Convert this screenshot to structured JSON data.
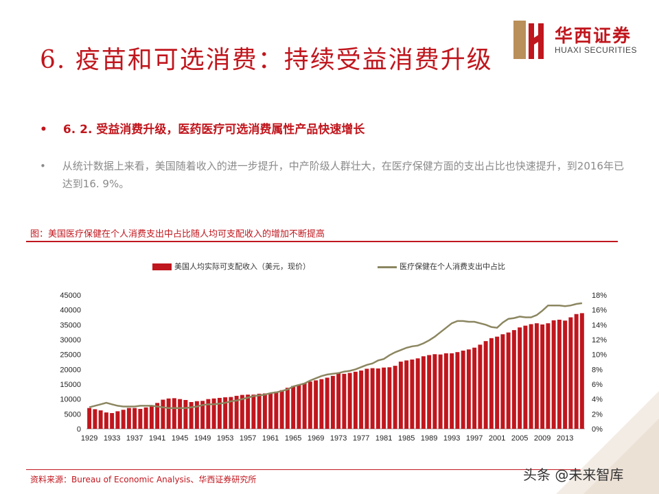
{
  "slide": {
    "title": "6. 疫苗和可选消费：持续受益消费升级",
    "bullet1": "6. 2. 受益消费升级，医药医疗可选消费属性产品快速增长",
    "bullet2": "从统计数据上来看，美国随着收入的进一步提升，中产阶级人群壮大，在医疗保健方面的支出占比也快速提升，到2016年已达到16. 9%。",
    "bullet_symbol": "•"
  },
  "logo": {
    "cn": "华西证券",
    "en": "HUAXI SECURITIES"
  },
  "figure": {
    "caption": "图：美国医疗保健在个人消费支出中占比随人均可支配收入的增加不断提高",
    "source": "资料来源：Bureau of Economic Analysis、华西证券研究所"
  },
  "watermark": "头条 @未来智库",
  "colors": {
    "accent": "#c0161d",
    "line": "#8b8660",
    "muted": "#8a8a8a"
  },
  "chart_data": {
    "type": "bar",
    "legend_placement": "top",
    "x": [
      1929,
      1930,
      1931,
      1932,
      1933,
      1934,
      1935,
      1936,
      1937,
      1938,
      1939,
      1940,
      1941,
      1942,
      1943,
      1944,
      1945,
      1946,
      1947,
      1948,
      1949,
      1950,
      1951,
      1952,
      1953,
      1954,
      1955,
      1956,
      1957,
      1958,
      1959,
      1960,
      1961,
      1962,
      1963,
      1964,
      1965,
      1966,
      1967,
      1968,
      1969,
      1970,
      1971,
      1972,
      1973,
      1974,
      1975,
      1976,
      1977,
      1978,
      1979,
      1980,
      1981,
      1982,
      1983,
      1984,
      1985,
      1986,
      1987,
      1988,
      1989,
      1990,
      1991,
      1992,
      1993,
      1994,
      1995,
      1996,
      1997,
      1998,
      1999,
      2000,
      2001,
      2002,
      2003,
      2004,
      2005,
      2006,
      2007,
      2008,
      2009,
      2010,
      2011,
      2012,
      2013,
      2014,
      2015,
      2016
    ],
    "x_tick_labels": [
      "1929",
      "1933",
      "1937",
      "1941",
      "1945",
      "1949",
      "1953",
      "1957",
      "1961",
      "1965",
      "1969",
      "1973",
      "1977",
      "1981",
      "1985",
      "1989",
      "1993",
      "1997",
      "2001",
      "2005",
      "2009",
      "2013"
    ],
    "left_axis": {
      "ylim": [
        0,
        45000
      ],
      "tick_labels": [
        "0",
        "5000",
        "10000",
        "15000",
        "20000",
        "25000",
        "30000",
        "35000",
        "40000",
        "45000"
      ]
    },
    "right_axis": {
      "ylim": [
        0,
        18
      ],
      "tick_labels": [
        "0%",
        "2%",
        "4%",
        "6%",
        "8%",
        "10%",
        "12%",
        "14%",
        "16%",
        "18%"
      ]
    },
    "series": [
      {
        "name": "美国人均实际可支配收入（美元，现价）",
        "kind": "bar",
        "axis": "left",
        "values": [
          7000,
          6600,
          6200,
          5500,
          5300,
          5900,
          6400,
          7000,
          7000,
          6700,
          7200,
          7700,
          8700,
          9800,
          10200,
          10300,
          10000,
          9700,
          9000,
          9300,
          9400,
          10000,
          10200,
          10400,
          10600,
          10700,
          11100,
          11400,
          11500,
          11500,
          11800,
          11900,
          12100,
          12500,
          13000,
          13800,
          14400,
          14900,
          15400,
          15900,
          16300,
          16700,
          17200,
          17800,
          18700,
          18500,
          18800,
          19200,
          19600,
          20200,
          20400,
          20300,
          20600,
          20700,
          21200,
          22600,
          23000,
          23300,
          23700,
          24400,
          24800,
          25100,
          25000,
          25400,
          25400,
          25800,
          26300,
          26700,
          27300,
          28300,
          29500,
          30500,
          31000,
          31800,
          32400,
          33200,
          34100,
          34700,
          35200,
          35500,
          35100,
          35500,
          36500,
          36700,
          36400,
          37500,
          38600,
          38900
        ]
      },
      {
        "name": "医疗保健在个人消费支出中占比",
        "kind": "line",
        "axis": "right",
        "values": [
          2.9,
          3.1,
          3.3,
          3.5,
          3.3,
          3.1,
          3.0,
          3.0,
          3.0,
          3.1,
          3.1,
          3.1,
          3.0,
          2.9,
          2.8,
          2.8,
          2.8,
          2.8,
          2.9,
          3.0,
          3.2,
          3.3,
          3.3,
          3.4,
          3.5,
          3.7,
          3.8,
          4.0,
          4.2,
          4.4,
          4.5,
          4.6,
          4.8,
          4.9,
          5.1,
          5.3,
          5.7,
          5.9,
          6.1,
          6.5,
          6.8,
          7.1,
          7.3,
          7.4,
          7.5,
          7.7,
          7.8,
          8.0,
          8.3,
          8.6,
          8.8,
          9.2,
          9.4,
          9.9,
          10.3,
          10.6,
          10.9,
          11.1,
          11.2,
          11.5,
          11.9,
          12.4,
          13.0,
          13.6,
          14.2,
          14.5,
          14.5,
          14.4,
          14.4,
          14.2,
          14.0,
          13.7,
          13.6,
          14.3,
          14.8,
          14.9,
          15.1,
          15.0,
          15.0,
          15.3,
          15.9,
          16.6,
          16.6,
          16.6,
          16.5,
          16.6,
          16.8,
          16.9
        ]
      }
    ]
  }
}
